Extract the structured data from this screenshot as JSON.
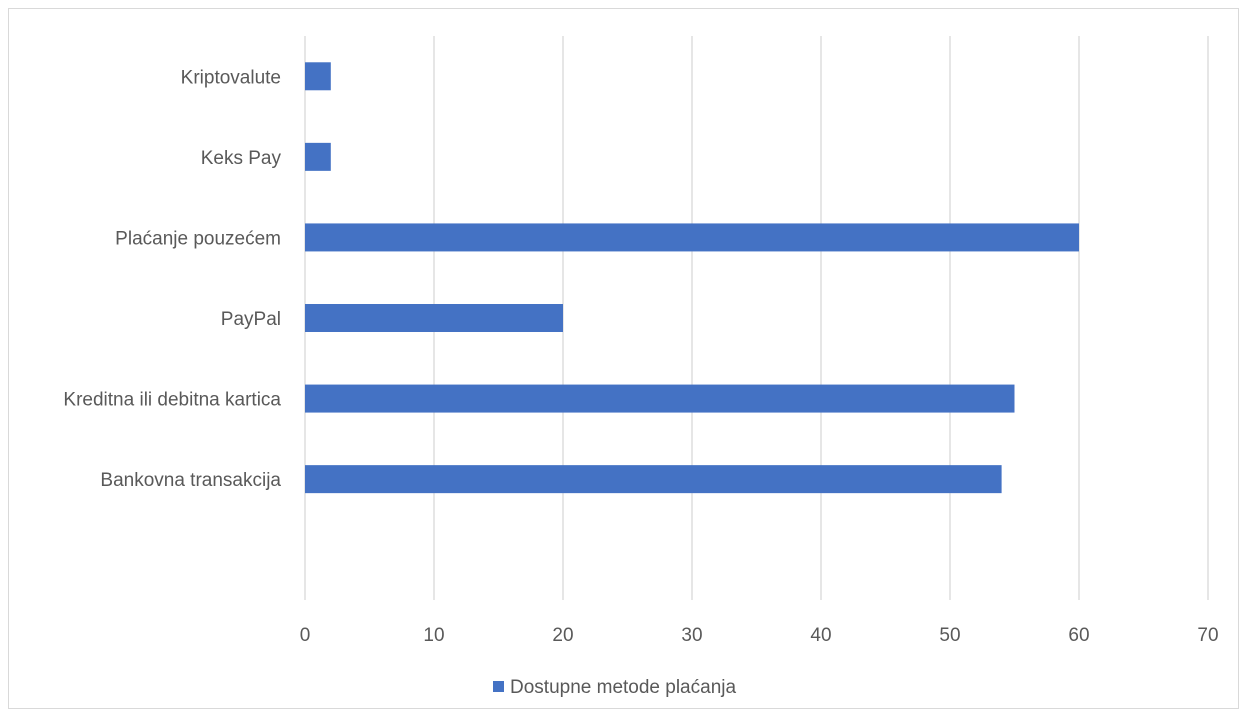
{
  "chart_data": {
    "type": "bar",
    "orientation": "horizontal",
    "categories": [
      "Bankovna transakcija",
      "Kreditna ili debitna kartica",
      "PayPal",
      "Plaćanje pouzećem",
      "Keks Pay",
      "Kriptovalute"
    ],
    "series": [
      {
        "name": "Dostupne metode plaćanja",
        "values": [
          54,
          55,
          20,
          60,
          2,
          2
        ],
        "color": "#4472c4"
      }
    ],
    "xlim": [
      0,
      70
    ],
    "xticks": [
      "0",
      "10",
      "20",
      "30",
      "40",
      "50",
      "60",
      "70"
    ],
    "grid": "vertical",
    "gridline_color": "#d9d9d9",
    "legend": "bottom-center"
  }
}
